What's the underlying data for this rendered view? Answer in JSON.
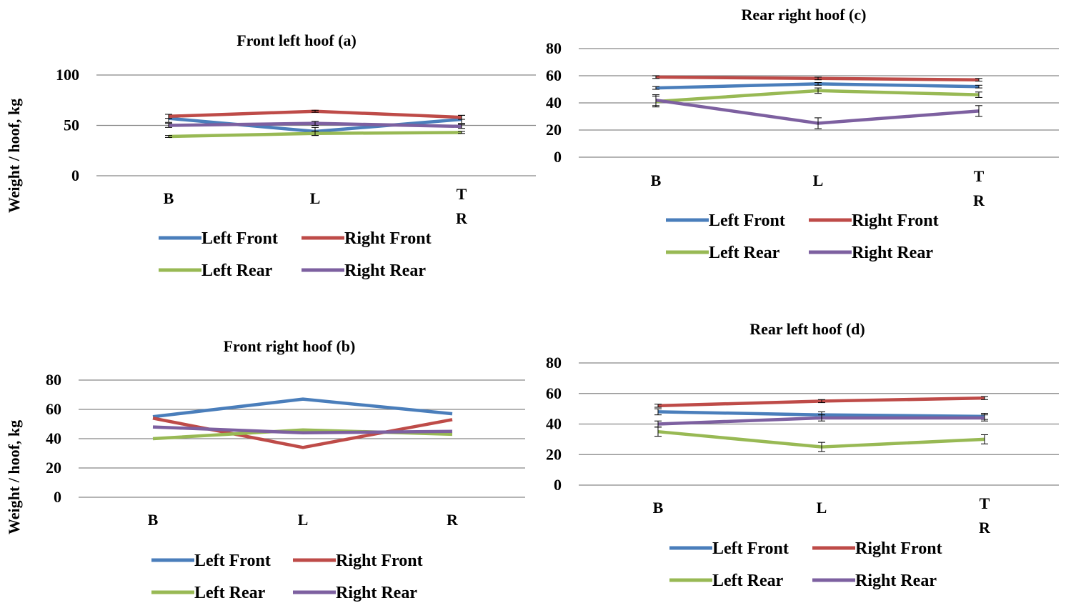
{
  "y_axis_label": "Weight / hoof, kg",
  "colors": {
    "Left Front": "#4a7ebb",
    "Right Front": "#be4b48",
    "Left Rear": "#98b954",
    "Right Rear": "#7d60a0",
    "grid": "#868686"
  },
  "chart_data": [
    {
      "type": "line",
      "title": "Front left hoof (a)",
      "categories": [
        "B",
        "L",
        "T R"
      ],
      "ylim": [
        0,
        100
      ],
      "yticks": [
        0,
        50,
        100
      ],
      "ylabel": "Weight / hoof, kg",
      "legend": "bottom",
      "series": [
        {
          "name": "Left Front",
          "values": [
            57,
            44,
            56
          ],
          "errors": [
            4,
            4,
            4
          ]
        },
        {
          "name": "Right Front",
          "values": [
            59,
            64,
            58
          ],
          "errors": [
            2,
            1,
            2
          ]
        },
        {
          "name": "Left Rear",
          "values": [
            39,
            42,
            43
          ],
          "errors": [
            1,
            2,
            1
          ]
        },
        {
          "name": "Right Rear",
          "values": [
            50,
            52,
            49
          ],
          "errors": [
            2,
            2,
            2
          ]
        }
      ]
    },
    {
      "type": "line",
      "title": "Rear right hoof (c)",
      "categories": [
        "B",
        "L",
        "T R"
      ],
      "ylim": [
        0,
        80
      ],
      "yticks": [
        0,
        20,
        40,
        60,
        80
      ],
      "ylabel": "",
      "legend": "bottom",
      "series": [
        {
          "name": "Left Front",
          "values": [
            51,
            54,
            52
          ],
          "errors": [
            1,
            1,
            1
          ]
        },
        {
          "name": "Right Front",
          "values": [
            59,
            58,
            57
          ],
          "errors": [
            1,
            1,
            1
          ]
        },
        {
          "name": "Left Rear",
          "values": [
            41,
            49,
            46
          ],
          "errors": [
            4,
            2,
            2
          ]
        },
        {
          "name": "Right Rear",
          "values": [
            42,
            25,
            34
          ],
          "errors": [
            4,
            4,
            4
          ]
        }
      ]
    },
    {
      "type": "line",
      "title": "Front right hoof (b)",
      "categories": [
        "B",
        "L",
        "R"
      ],
      "ylim": [
        0,
        80
      ],
      "yticks": [
        0,
        "20",
        "40",
        "60",
        "80"
      ],
      "ytick_labels": [
        "0",
        "20",
        "40",
        "60",
        "80"
      ],
      "ylabel": "Weight / hoof, kg",
      "legend": "bottom",
      "series": [
        {
          "name": "Left Front",
          "values": [
            55,
            67,
            57
          ],
          "errors": [
            0,
            0,
            0
          ]
        },
        {
          "name": "Right Front",
          "values": [
            54,
            34,
            53
          ],
          "errors": [
            0,
            0,
            0
          ]
        },
        {
          "name": "Left Rear",
          "values": [
            40,
            46,
            43
          ],
          "errors": [
            0,
            0,
            0
          ]
        },
        {
          "name": "Right Rear",
          "values": [
            48,
            44,
            45
          ],
          "errors": [
            0,
            0,
            0
          ]
        }
      ]
    },
    {
      "type": "line",
      "title": "Rear left hoof (d)",
      "categories": [
        "B",
        "L",
        "T R"
      ],
      "ylim": [
        0,
        80
      ],
      "yticks": [
        0,
        20,
        40,
        60,
        80
      ],
      "ylabel": "",
      "legend": "bottom",
      "series": [
        {
          "name": "Left Front",
          "values": [
            48,
            46,
            45
          ],
          "errors": [
            2,
            2,
            2
          ]
        },
        {
          "name": "Right Front",
          "values": [
            52,
            55,
            57
          ],
          "errors": [
            1,
            1,
            1
          ]
        },
        {
          "name": "Left Rear",
          "values": [
            35,
            25,
            30
          ],
          "errors": [
            3,
            3,
            3
          ]
        },
        {
          "name": "Right Rear",
          "values": [
            40,
            44,
            44
          ],
          "errors": [
            2,
            2,
            2
          ]
        }
      ]
    }
  ]
}
